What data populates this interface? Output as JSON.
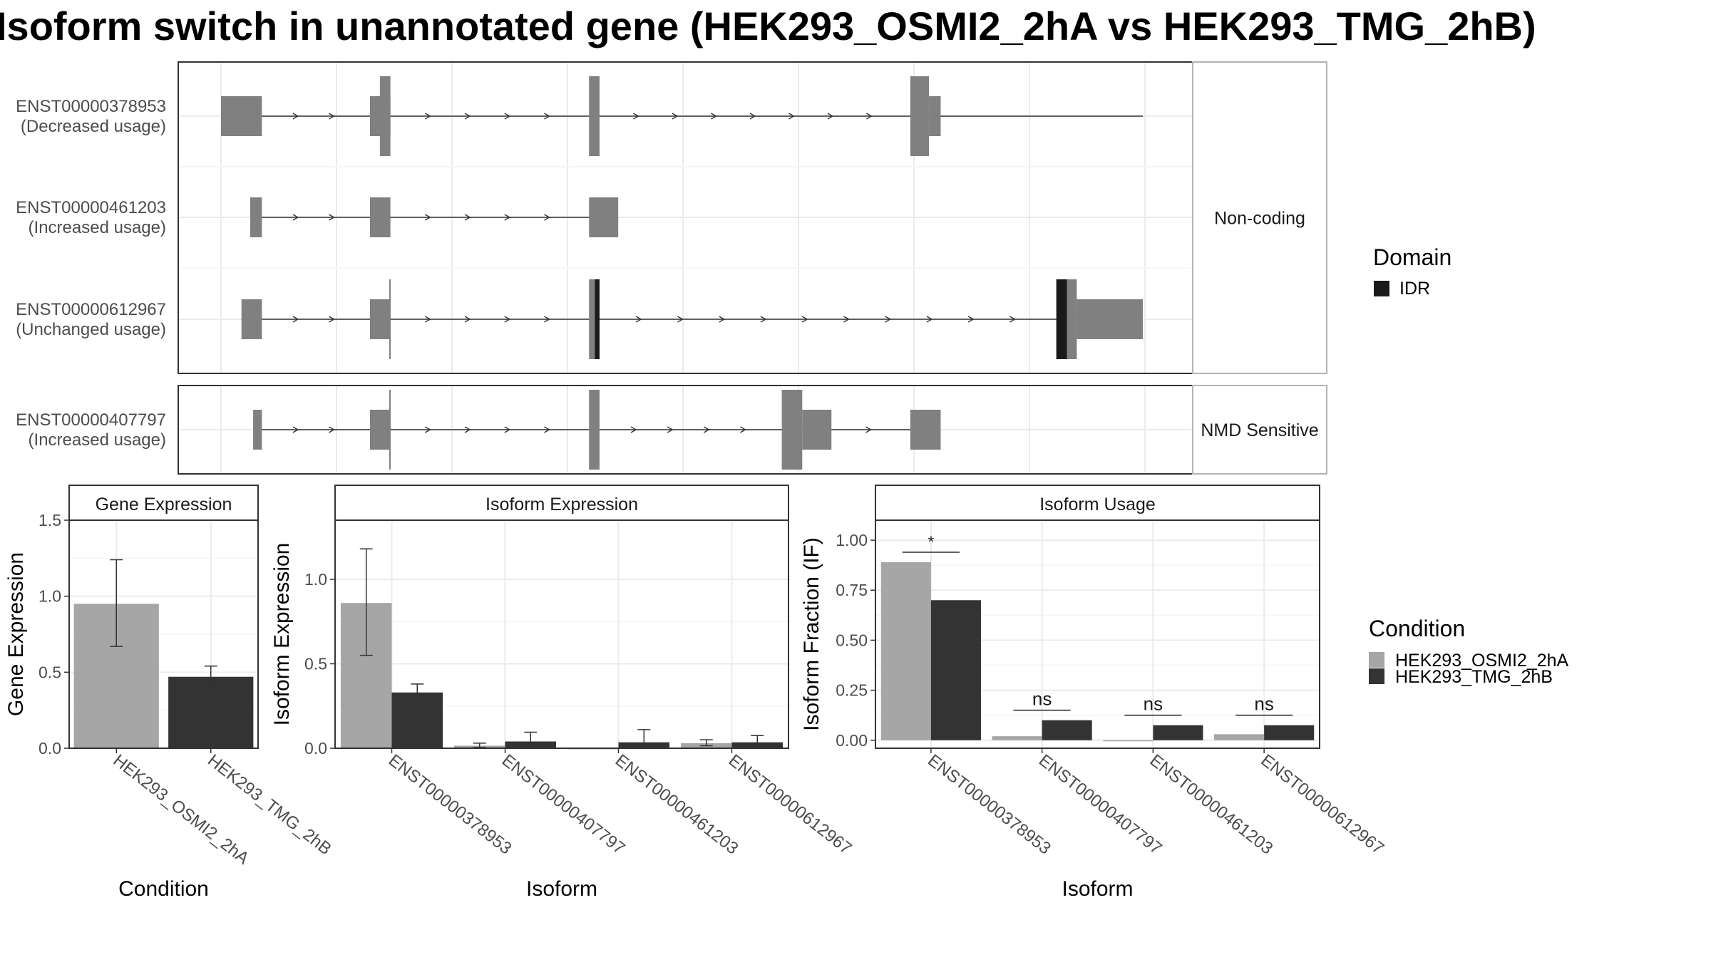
{
  "chart_data": [
    {
      "type": "gene-structure",
      "title": "Isoform switch in unannotated gene (HEK293_OSMI2_2hA vs HEK293_TMG_2hB)",
      "panels": [
        {
          "label": "Non-coding",
          "transcripts": [
            {
              "id": "ENST00000378953",
              "usage": "(Decreased usage)",
              "start": 0,
              "end": 1578,
              "exons": [
                {
                  "start": 0,
                  "end": 70,
                  "kind": "utr"
                },
                {
                  "start": 255,
                  "end": 290,
                  "kind": "utr"
                },
                {
                  "start": 272,
                  "end": 290,
                  "kind": "cds"
                },
                {
                  "start": 630,
                  "end": 648,
                  "kind": "cds"
                },
                {
                  "start": 1180,
                  "end": 1212,
                  "kind": "cds"
                },
                {
                  "start": 1212,
                  "end": 1232,
                  "kind": "utr"
                }
              ],
              "domains": []
            },
            {
              "id": "ENST00000461203",
              "usage": "(Increased usage)",
              "start": 50,
              "end": 680,
              "exons": [
                {
                  "start": 50,
                  "end": 70,
                  "kind": "utr"
                },
                {
                  "start": 255,
                  "end": 290,
                  "kind": "utr"
                },
                {
                  "start": 630,
                  "end": 680,
                  "kind": "utr"
                }
              ],
              "domains": []
            },
            {
              "id": "ENST00000612967",
              "usage": "(Unchanged usage)",
              "start": 35,
              "end": 1578,
              "exons": [
                {
                  "start": 35,
                  "end": 70,
                  "kind": "utr"
                },
                {
                  "start": 255,
                  "end": 290,
                  "kind": "utr"
                },
                {
                  "start": 288,
                  "end": 290,
                  "kind": "cds"
                },
                {
                  "start": 630,
                  "end": 648,
                  "kind": "cds"
                },
                {
                  "start": 1430,
                  "end": 1465,
                  "kind": "cds"
                },
                {
                  "start": 1465,
                  "end": 1578,
                  "kind": "utr"
                }
              ],
              "domains": [
                {
                  "name": "IDR",
                  "start": 640,
                  "end": 648
                },
                {
                  "name": "IDR",
                  "start": 1430,
                  "end": 1448
                }
              ]
            }
          ]
        },
        {
          "label": "NMD Sensitive",
          "transcripts": [
            {
              "id": "ENST00000407797",
              "usage": "(Increased usage)",
              "start": 55,
              "end": 1232,
              "exons": [
                {
                  "start": 55,
                  "end": 70,
                  "kind": "utr"
                },
                {
                  "start": 255,
                  "end": 290,
                  "kind": "utr"
                },
                {
                  "start": 288,
                  "end": 290,
                  "kind": "cds"
                },
                {
                  "start": 630,
                  "end": 648,
                  "kind": "cds"
                },
                {
                  "start": 960,
                  "end": 995,
                  "kind": "cds"
                },
                {
                  "start": 995,
                  "end": 1045,
                  "kind": "utr"
                },
                {
                  "start": 1180,
                  "end": 1232,
                  "kind": "utr"
                }
              ],
              "domains": []
            }
          ]
        }
      ],
      "legend": {
        "title": "Domain",
        "items": [
          {
            "label": "IDR",
            "color": "#1a1a1a"
          }
        ]
      }
    },
    {
      "type": "bar",
      "title": "Gene Expression",
      "xlabel": "Condition",
      "ylabel": "Gene Expression",
      "ylim": [
        0,
        1.5
      ],
      "yticks": [
        "0.0",
        "0.5",
        "1.0",
        "1.5"
      ],
      "categories": [
        "HEK293_OSMI2_2hA",
        "HEK293_TMG_2hB"
      ],
      "values": [
        0.95,
        0.47
      ],
      "errors": [
        [
          0.67,
          1.24
        ],
        [
          0.41,
          0.54
        ]
      ]
    },
    {
      "type": "bar",
      "title": "Isoform Expression",
      "xlabel": "Isoform",
      "ylabel": "Isoform Expression",
      "ylim": [
        0,
        1.35
      ],
      "yticks": [
        "0.0",
        "0.5",
        "1.0"
      ],
      "categories": [
        "ENST00000378953",
        "ENST00000407797",
        "ENST00000461203",
        "ENST00000612967"
      ],
      "series": [
        {
          "name": "HEK293_OSMI2_2hA",
          "values": [
            0.86,
            0.015,
            0.0,
            0.03
          ],
          "errors": [
            [
              0.55,
              1.18
            ],
            [
              0.005,
              0.03
            ],
            [
              0.0,
              0.0
            ],
            [
              0.015,
              0.05
            ]
          ]
        },
        {
          "name": "HEK293_TMG_2hB",
          "values": [
            0.33,
            0.04,
            0.035,
            0.035
          ],
          "errors": [
            [
              0.29,
              0.38
            ],
            [
              0.005,
              0.095
            ],
            [
              0.0,
              0.11
            ],
            [
              0.005,
              0.075
            ]
          ]
        }
      ]
    },
    {
      "type": "bar",
      "title": "Isoform Usage",
      "xlabel": "Isoform",
      "ylabel": "Isoform Fraction (IF)",
      "ylim": [
        -0.04,
        1.1
      ],
      "yticks": [
        "0.00",
        "0.25",
        "0.50",
        "0.75",
        "1.00"
      ],
      "categories": [
        "ENST00000378953",
        "ENST00000407797",
        "ENST00000461203",
        "ENST00000612967"
      ],
      "series": [
        {
          "name": "HEK293_OSMI2_2hA",
          "values": [
            0.89,
            0.02,
            0.0,
            0.03
          ]
        },
        {
          "name": "HEK293_TMG_2hB",
          "values": [
            0.7,
            0.1,
            0.075,
            0.075
          ]
        }
      ],
      "significance": [
        "*",
        "ns",
        "ns",
        "ns"
      ]
    }
  ],
  "condition_legend": {
    "title": "Condition",
    "items": [
      {
        "label": "HEK293_OSMI2_2hA",
        "color": "#a6a6a6"
      },
      {
        "label": "HEK293_TMG_2hB",
        "color": "#333333"
      }
    ]
  }
}
